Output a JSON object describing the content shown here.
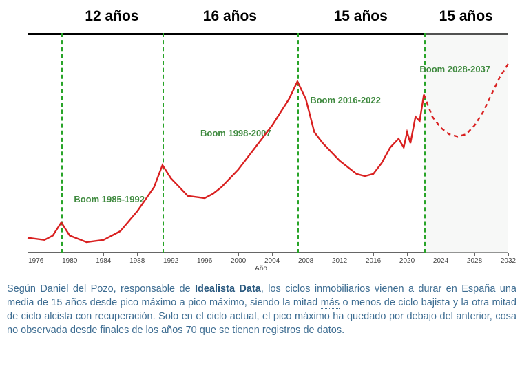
{
  "chart": {
    "type": "line",
    "background_color": "#ffffff",
    "line_color": "#d92020",
    "line_width": 2.4,
    "forecast_dash": "6 5",
    "vline_color": "#28a428",
    "vline_dash": "6 5",
    "annotation_color": "#3f8a3f",
    "period_label_color": "#000000",
    "future_shade_color": "#e8ece8",
    "xaxis": {
      "title": "Año",
      "min": 1975,
      "max": 2032,
      "tick_start": 1976,
      "tick_step": 4,
      "ticks": [
        1976,
        1980,
        1984,
        1988,
        1992,
        1996,
        2000,
        2004,
        2008,
        2012,
        2016,
        2020,
        2024,
        2028,
        2032
      ],
      "tick_fontsize": 10
    },
    "yaxis": {
      "min": 0,
      "max": 100,
      "show_labels": false
    },
    "vlines": [
      1979,
      1991,
      2007,
      2022
    ],
    "future_start": 2022,
    "periods": [
      {
        "label": "12 años",
        "center_year": 1985
      },
      {
        "label": "16 años",
        "center_year": 1999
      },
      {
        "label": "15 años",
        "center_year": 2014.5
      },
      {
        "label": "15 años",
        "center_year": 2027
      }
    ],
    "annotations": [
      {
        "text": "Boom 1985-1992",
        "year": 1980.5,
        "y": 27
      },
      {
        "text": "Boom 1998-2007",
        "year": 1995.5,
        "y": 57
      },
      {
        "text": "Boom 2016-2022",
        "year": 2008.5,
        "y": 72
      },
      {
        "text": "Boom 2028-2037",
        "year": 2021.5,
        "y": 86
      }
    ],
    "series_actual": [
      [
        1975,
        7
      ],
      [
        1977,
        6
      ],
      [
        1978,
        8
      ],
      [
        1979,
        14
      ],
      [
        1980,
        8
      ],
      [
        1982,
        5
      ],
      [
        1984,
        6
      ],
      [
        1986,
        10
      ],
      [
        1988,
        19
      ],
      [
        1990,
        30
      ],
      [
        1991,
        40
      ],
      [
        1992,
        34
      ],
      [
        1994,
        26
      ],
      [
        1996,
        25
      ],
      [
        1997,
        27
      ],
      [
        1998,
        30
      ],
      [
        2000,
        38
      ],
      [
        2002,
        48
      ],
      [
        2004,
        58
      ],
      [
        2006,
        70
      ],
      [
        2007,
        78
      ],
      [
        2008,
        70
      ],
      [
        2009,
        55
      ],
      [
        2010,
        50
      ],
      [
        2012,
        42
      ],
      [
        2014,
        36
      ],
      [
        2015,
        35
      ],
      [
        2016,
        36
      ],
      [
        2017,
        41
      ],
      [
        2018,
        48
      ],
      [
        2019,
        52
      ],
      [
        2019.6,
        48
      ],
      [
        2020,
        55
      ],
      [
        2020.4,
        50
      ],
      [
        2021,
        62
      ],
      [
        2021.5,
        60
      ],
      [
        2022,
        72
      ]
    ],
    "series_forecast": [
      [
        2022,
        72
      ],
      [
        2023,
        62
      ],
      [
        2024,
        57
      ],
      [
        2025,
        54
      ],
      [
        2026,
        53
      ],
      [
        2027,
        54
      ],
      [
        2028,
        58
      ],
      [
        2029,
        64
      ],
      [
        2030,
        72
      ],
      [
        2031,
        80
      ],
      [
        2032,
        86
      ]
    ],
    "period_label_fontsize": 21,
    "annotation_fontsize": 13
  },
  "caption": {
    "prefix": "Según Daniel del Pozo, responsable de ",
    "bold": "Idealista Data",
    "after_bold": ", los ciclos inmobiliarios vienen a durar en España una media de 15 años desde pico máximo a pico máximo, siendo la mitad ",
    "underlined_word": "más",
    "suffix": " o menos de ciclo bajista y la otra mitad de ciclo alcista con recuperación. Solo en el ciclo actual, el pico máximo ha quedado por debajo del anterior, cosa no observada desde finales de los años 70 que se tienen registros de datos.",
    "color": "#3e6d92",
    "fontsize": 14.5
  }
}
